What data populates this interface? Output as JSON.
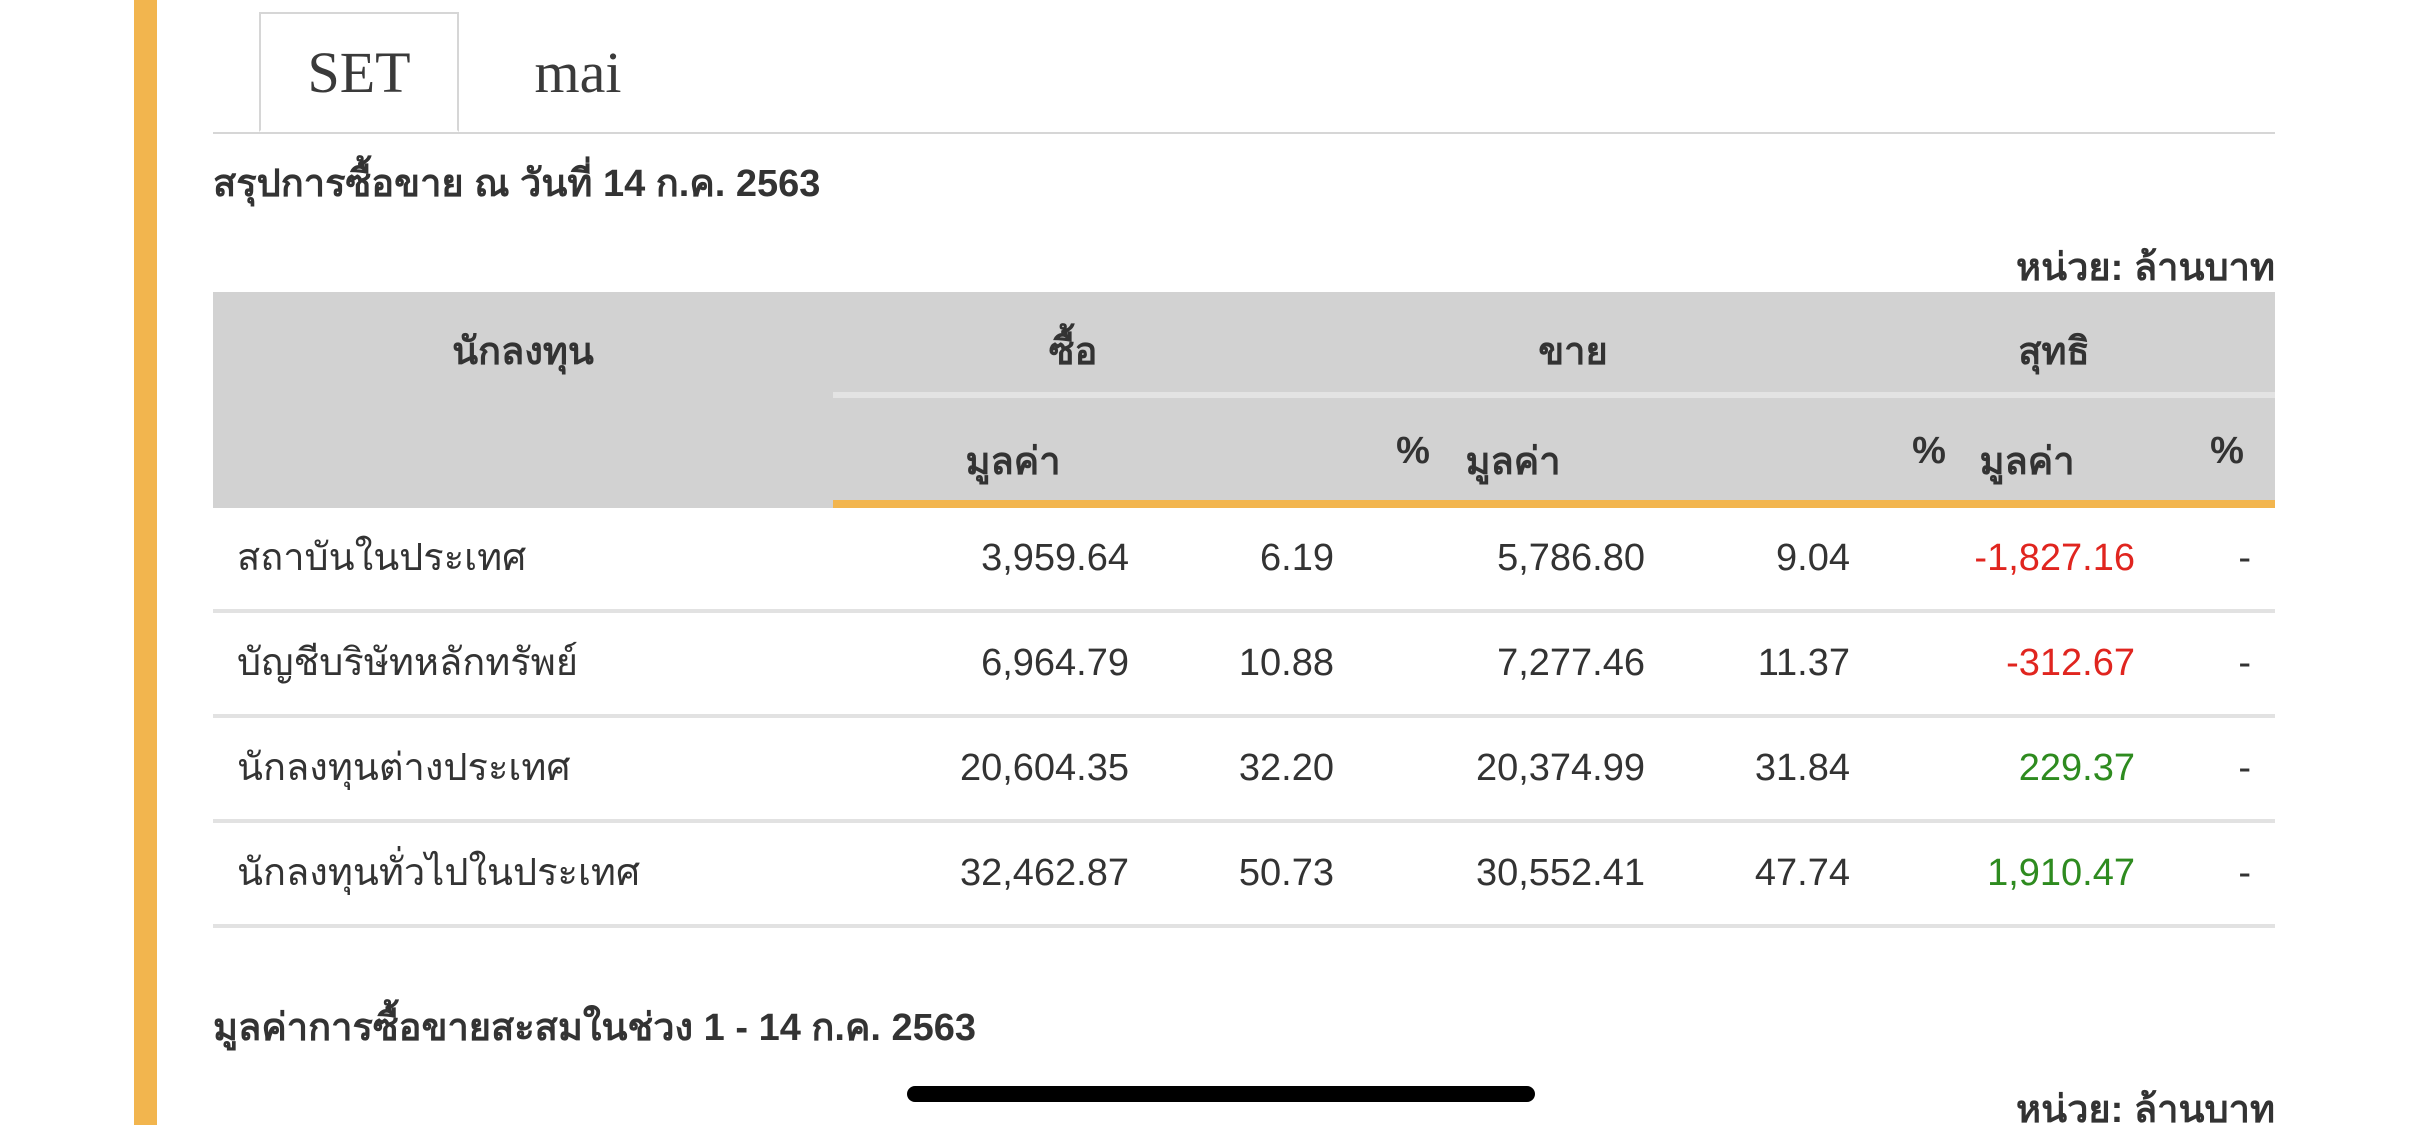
{
  "tabs": [
    {
      "label": "SET",
      "active": true
    },
    {
      "label": "mai",
      "active": false
    }
  ],
  "summary": {
    "title": "สรุปการซื้อขาย ณ วันที่ 14 ก.ค. 2563",
    "unit": "หน่วย: ล้านบาท"
  },
  "table": {
    "header": {
      "investor": "นักลงทุน",
      "buy": "ซื้อ",
      "sell": "ขาย",
      "net": "สุทธิ",
      "value": "มูลค่า",
      "percent": "%"
    },
    "rows": [
      {
        "name": "สถาบันในประเทศ",
        "buy_value": "3,959.64",
        "buy_pct": "6.19",
        "sell_value": "5,786.80",
        "sell_pct": "9.04",
        "net_value": "-1,827.16",
        "net_pct": "-"
      },
      {
        "name": "บัญชีบริษัทหลักทรัพย์",
        "buy_value": "6,964.79",
        "buy_pct": "10.88",
        "sell_value": "7,277.46",
        "sell_pct": "11.37",
        "net_value": "-312.67",
        "net_pct": "-"
      },
      {
        "name": "นักลงทุนต่างประเทศ",
        "buy_value": "20,604.35",
        "buy_pct": "32.20",
        "sell_value": "20,374.99",
        "sell_pct": "31.84",
        "net_value": "229.37",
        "net_pct": "-"
      },
      {
        "name": "นักลงทุนทั่วไปในประเทศ",
        "buy_value": "32,462.87",
        "buy_pct": "50.73",
        "sell_value": "30,552.41",
        "sell_pct": "47.74",
        "net_value": "1,910.47",
        "net_pct": "-"
      }
    ]
  },
  "cumulative": {
    "title": "มูลค่าการซื้อขายสะสมในช่วง 1 - 14 ก.ค. 2563",
    "unit": "หน่วย: ล้านบาท"
  },
  "colors": {
    "accent": "#F2B54E",
    "negative": "#e0251f",
    "positive": "#2e8b1f",
    "header_bg": "#d2d2d2"
  }
}
